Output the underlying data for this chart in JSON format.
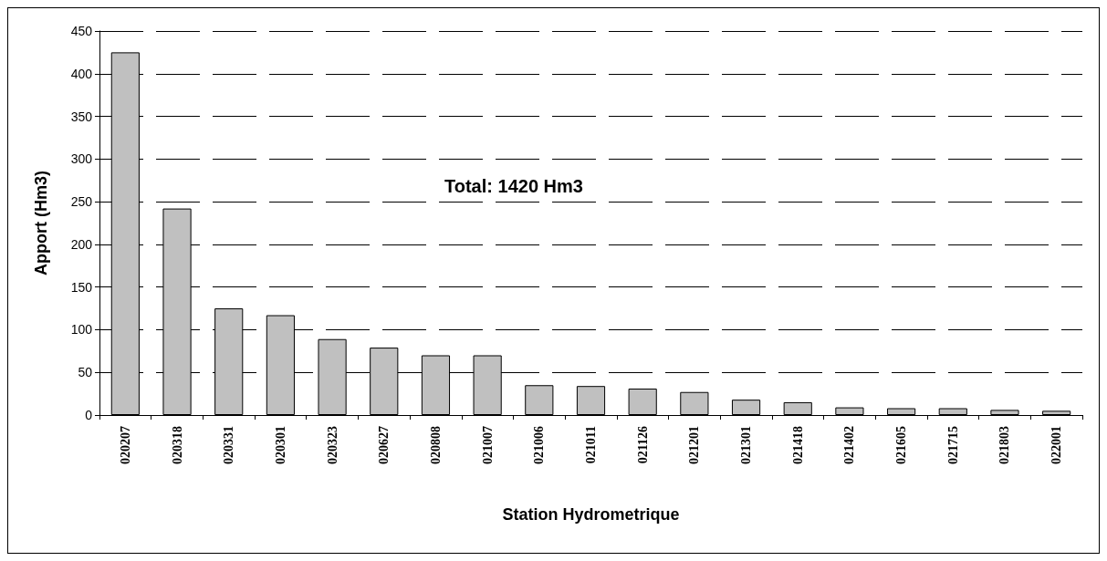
{
  "chart_data": {
    "type": "bar",
    "xlabel": "Station Hydrometrique",
    "ylabel": "Apport (Hm3)",
    "annotations": [
      "Total: 1420 Hm3"
    ],
    "categories": [
      "020207",
      "020318",
      "020331",
      "020301",
      "020323",
      "020627",
      "020808",
      "021007",
      "021006",
      "021011",
      "021126",
      "021201",
      "021301",
      "021418",
      "021402",
      "021605",
      "021715",
      "021803",
      "022001"
    ],
    "values": [
      425,
      242,
      125,
      117,
      89,
      79,
      70,
      70,
      35,
      34,
      31,
      27,
      18,
      15,
      9,
      8,
      8,
      6,
      5
    ],
    "color": "#c0c0c0",
    "ylim": [
      0,
      450
    ],
    "yticks": [
      0,
      50,
      100,
      150,
      200,
      250,
      300,
      350,
      400,
      450
    ],
    "grid": "y"
  }
}
